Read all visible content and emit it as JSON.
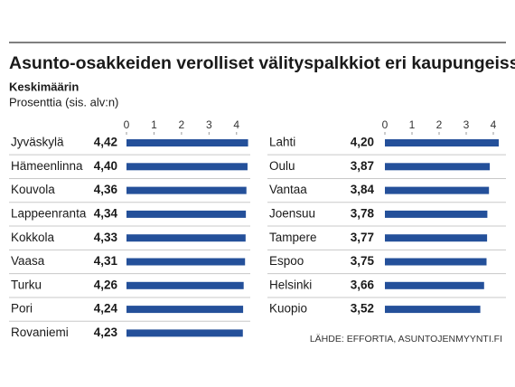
{
  "header": {
    "title": "Asunto-osakkeiden verolliset välityspalkkiot eri kaupungeissa",
    "subtitle": "Keskimäärin",
    "unit": "Prosenttia (sis. alv:n)"
  },
  "source": "LÄHDE: EFFORTIA, ASUNTOJENMYYNTI.FI",
  "chart_data": [
    {
      "type": "bar",
      "orientation": "horizontal",
      "color": "#24509a",
      "categories": [
        "Jyväskylä",
        "Hämeenlinna",
        "Kouvola",
        "Lappeenranta",
        "Kokkola",
        "Vaasa",
        "Turku",
        "Pori",
        "Rovaniemi"
      ],
      "values": [
        4.42,
        4.4,
        4.36,
        4.34,
        4.33,
        4.31,
        4.26,
        4.24,
        4.23
      ],
      "value_labels": [
        "4,42",
        "4,40",
        "4,36",
        "4,34",
        "4,33",
        "4,31",
        "4,26",
        "4,24",
        "4,23"
      ],
      "xlim": [
        0,
        4.5
      ],
      "xticks": [
        0,
        1,
        2,
        3,
        4
      ]
    },
    {
      "type": "bar",
      "orientation": "horizontal",
      "color": "#24509a",
      "categories": [
        "Lahti",
        "Oulu",
        "Vantaa",
        "Joensuu",
        "Tampere",
        "Espoo",
        "Helsinki",
        "Kuopio"
      ],
      "values": [
        4.2,
        3.87,
        3.84,
        3.78,
        3.77,
        3.75,
        3.66,
        3.52
      ],
      "value_labels": [
        "4,20",
        "3,87",
        "3,84",
        "3,78",
        "3,77",
        "3,75",
        "3,66",
        "3,52"
      ],
      "xlim": [
        0,
        4.5
      ],
      "xticks": [
        0,
        1,
        2,
        3,
        4
      ]
    }
  ]
}
